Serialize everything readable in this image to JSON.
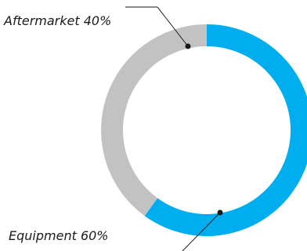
{
  "chart_data": {
    "type": "pie",
    "donut": true,
    "categories": [
      "Equipment",
      "Aftermarket"
    ],
    "values": [
      60,
      40
    ],
    "units": "%",
    "colors": [
      "#00aeef",
      "#c2c2c2"
    ],
    "labels": [
      "Equipment 60%",
      "Aftermarket 40%"
    ],
    "start_at": "top",
    "direction": "clockwise",
    "legend": "none",
    "title": ""
  }
}
